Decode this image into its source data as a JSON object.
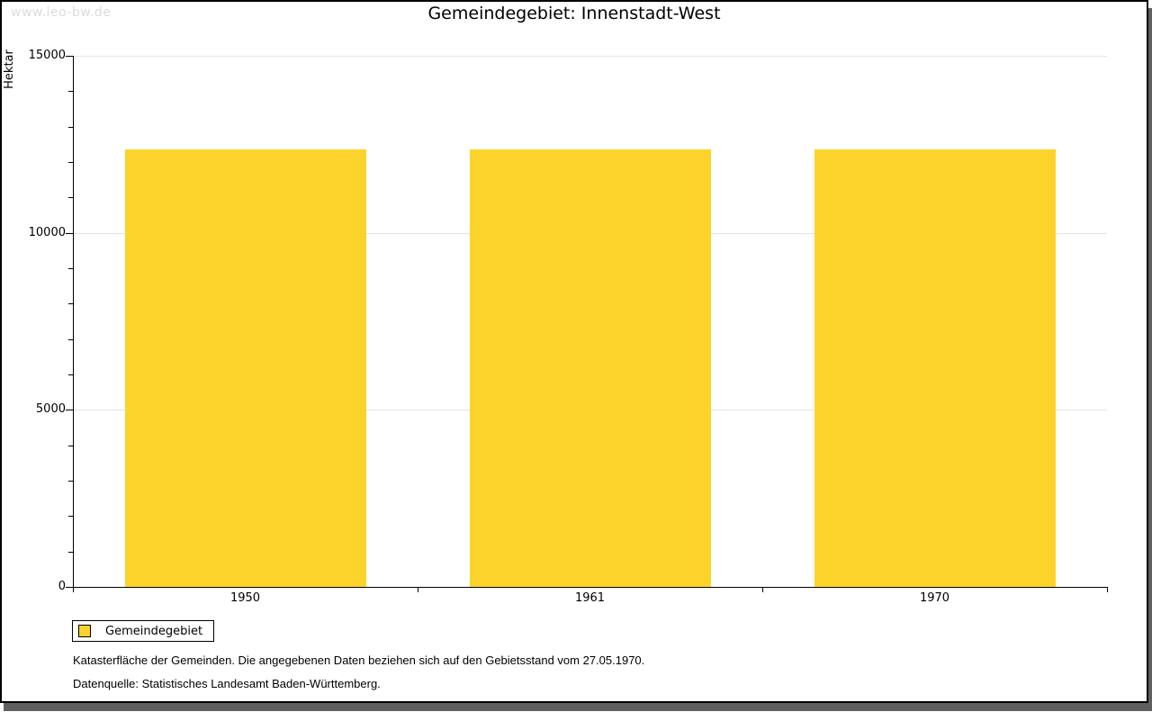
{
  "watermark": "www.leo-bw.de",
  "title": "Gemeindegebiet: Innenstadt-West",
  "chart_data": {
    "type": "bar",
    "title": "Gemeindegebiet: Innenstadt-West",
    "categories": [
      "1950",
      "1961",
      "1970"
    ],
    "series": [
      {
        "name": "Gemeindegebiet",
        "values": [
          12360,
          12360,
          12360
        ]
      }
    ],
    "xlabel": "",
    "ylabel": "Hektar",
    "ylim": [
      0,
      15000
    ],
    "y_ticks": [
      0,
      5000,
      10000,
      15000
    ],
    "minor_tick_interval": 1000,
    "grid": true,
    "legend_position": "bottom-left",
    "bar_color": "#fcd32b"
  },
  "legend": {
    "items": [
      {
        "label": "Gemeindegebiet",
        "color": "#fcd32b"
      }
    ]
  },
  "footnotes": [
    "Katasterfläche der Gemeinden. Die angegebenen Daten beziehen sich auf den Gebietsstand vom 27.05.1970.",
    "Datenquelle: Statistisches Landesamt Baden-Württemberg."
  ],
  "colors": {
    "bar": "#fcd32b",
    "gridline": "#e4e4e4",
    "watermark": "#dcdcdc",
    "shadow": "#5f5f5f"
  }
}
